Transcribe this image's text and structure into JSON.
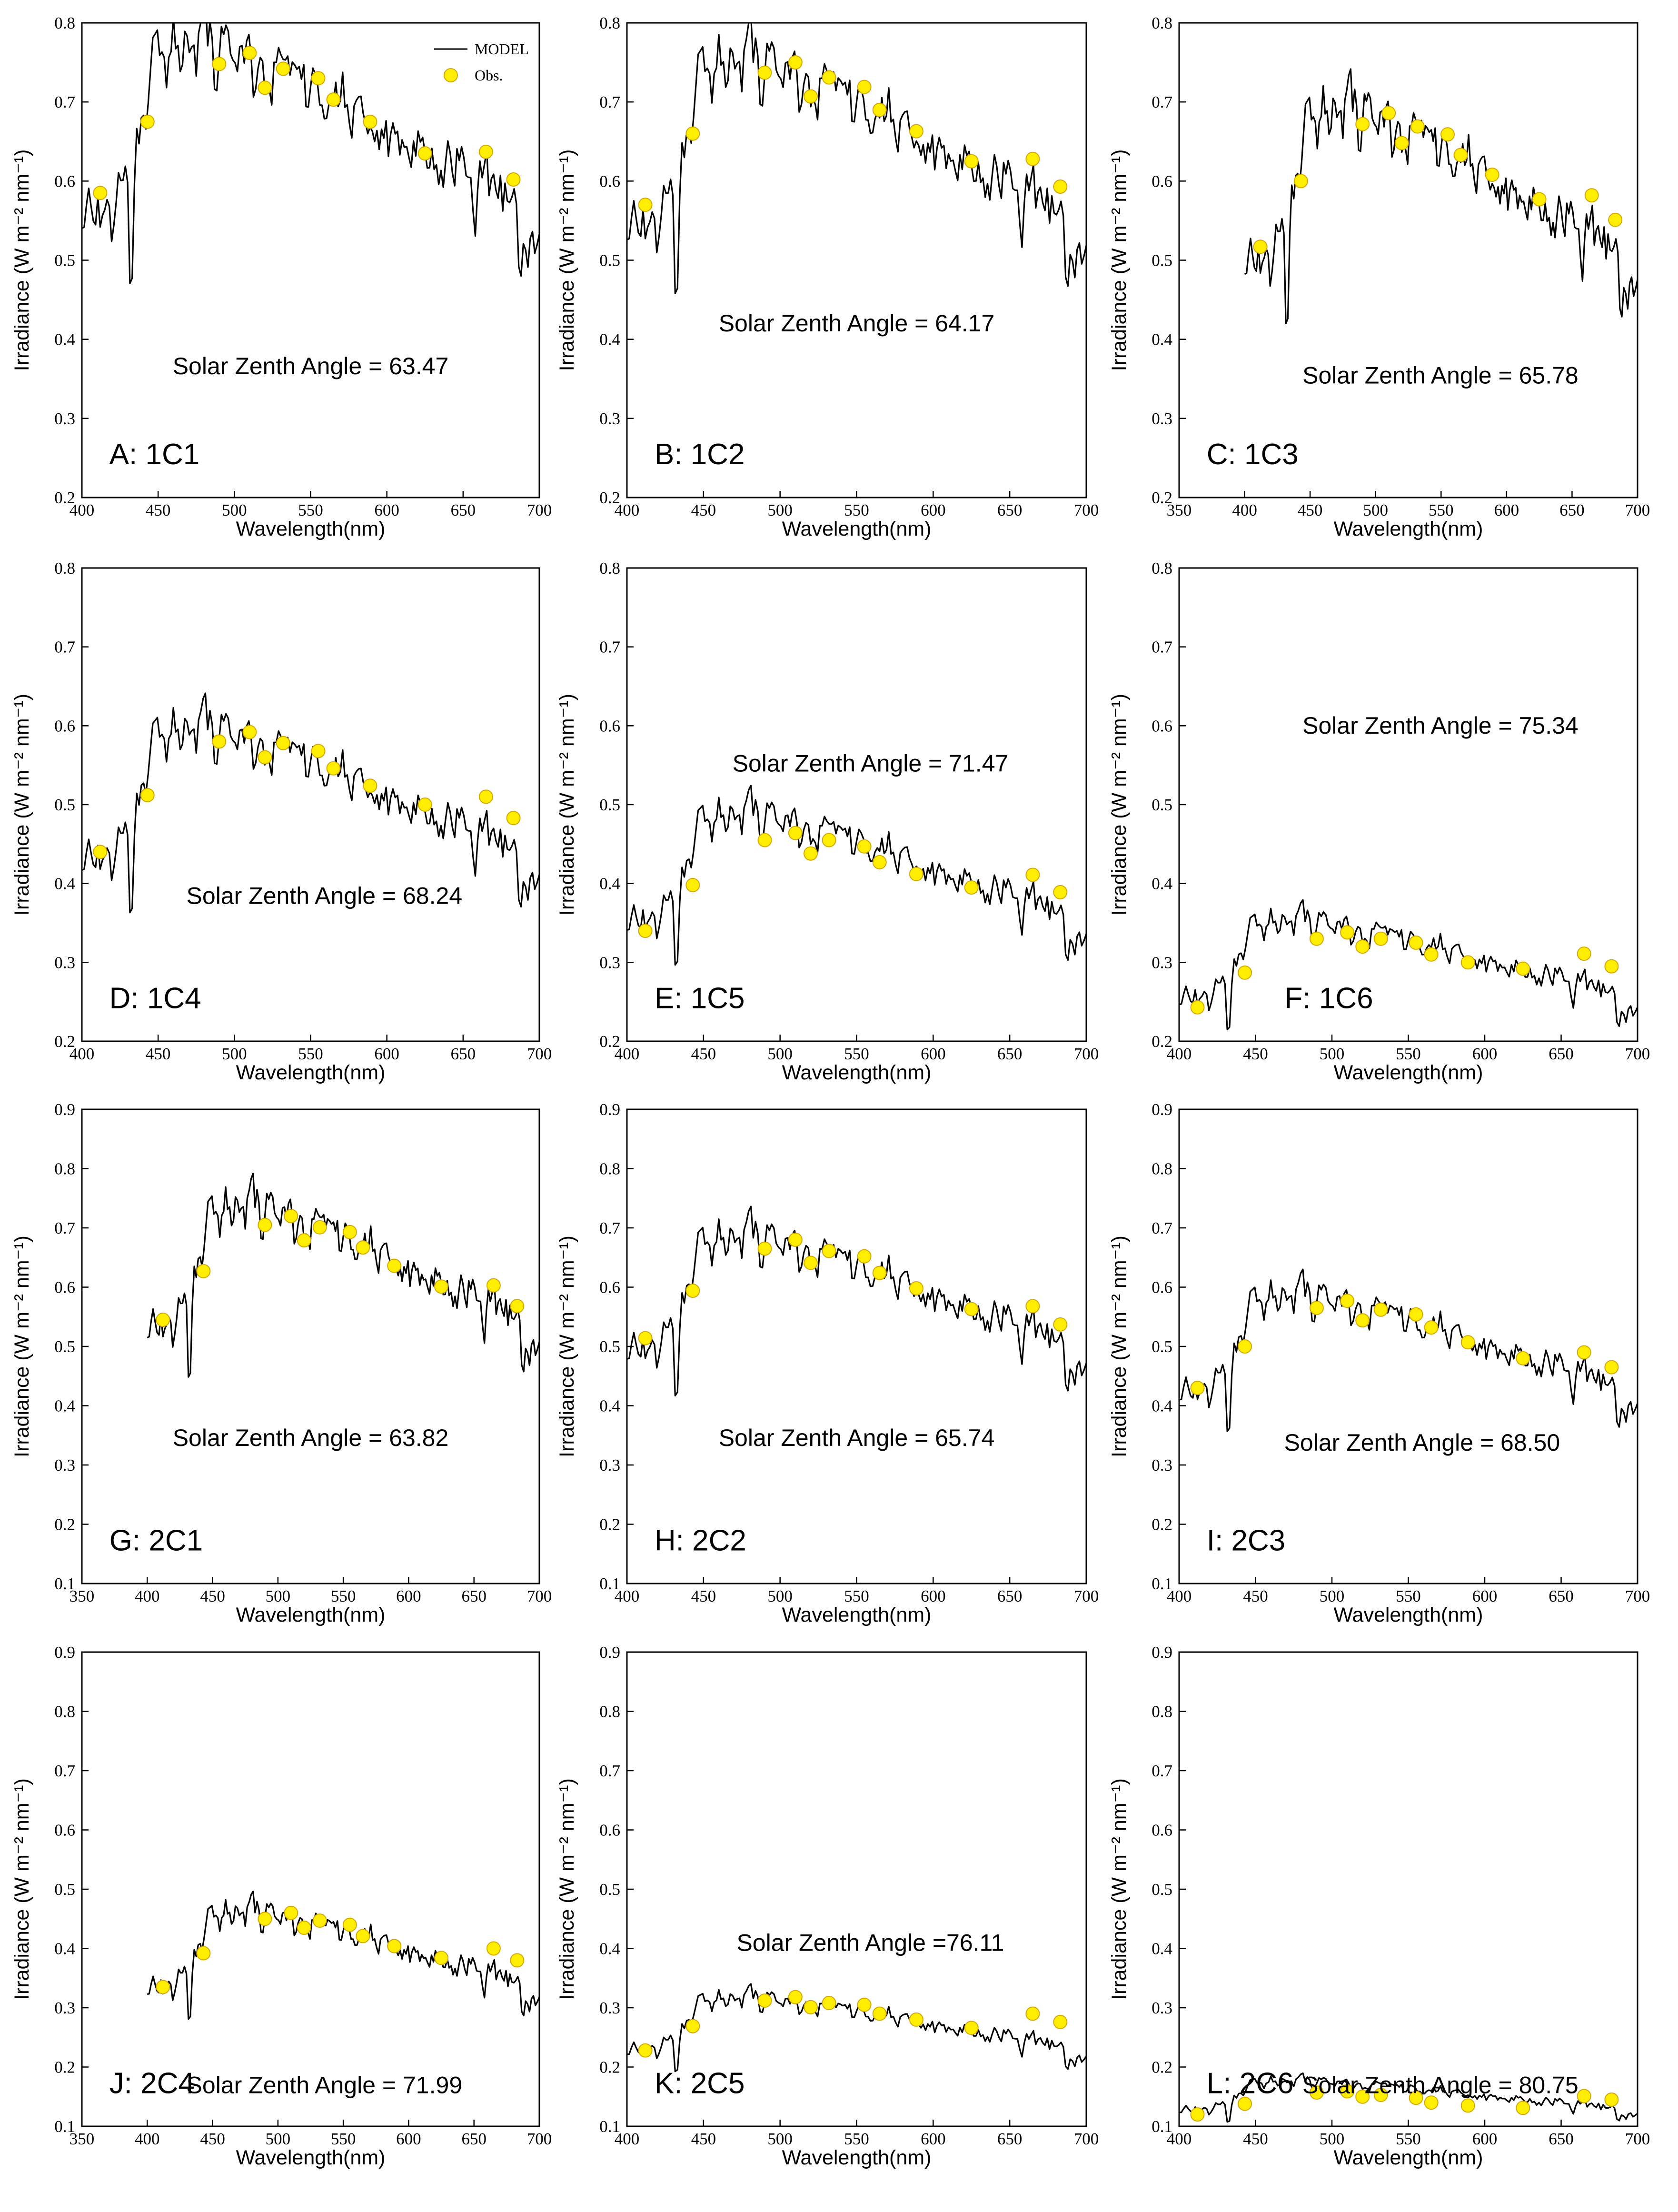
{
  "chart_data": {
    "type": "line",
    "xlabel": "Wavelength(nm)",
    "ylabel": "Irradiance (W m⁻² nm⁻¹)",
    "legend": {
      "placement": "top-right",
      "model_label": "MODEL",
      "obs_label": "Obs."
    },
    "colors": {
      "model_line": "#000000",
      "obs_fill": "#ffee00",
      "obs_stroke": "#d4a800",
      "frame": "#000000"
    },
    "shape_anchors": {
      "wavelength": [
        400,
        405,
        410,
        415,
        420,
        425,
        430,
        432,
        435,
        440,
        445,
        448,
        450,
        455,
        460,
        465,
        470,
        475,
        480,
        485,
        488,
        490,
        495,
        500,
        505,
        510,
        513,
        515,
        518,
        520,
        525,
        530,
        535,
        540,
        545,
        550,
        555,
        560,
        565,
        570,
        575,
        580,
        585,
        588,
        590,
        595,
        600,
        605,
        610,
        615,
        620,
        625,
        630,
        635,
        640,
        645,
        650,
        655,
        658,
        660,
        665,
        670,
        675,
        680,
        685,
        687,
        690,
        695,
        700
      ],
      "relative": [
        0.72,
        0.78,
        0.75,
        0.8,
        0.74,
        0.82,
        0.8,
        0.58,
        0.86,
        0.92,
        0.98,
        1.06,
        1.08,
        1.0,
        1.08,
        1.02,
        1.06,
        1.02,
        1.08,
        1.04,
        0.92,
        1.06,
        1.04,
        1.02,
        1.03,
        1.04,
        0.98,
        0.96,
        1.0,
        0.97,
        0.98,
        1.0,
        0.99,
        0.99,
        0.97,
        0.98,
        0.96,
        0.95,
        0.94,
        0.96,
        0.92,
        0.93,
        0.92,
        0.86,
        0.88,
        0.9,
        0.89,
        0.88,
        0.86,
        0.87,
        0.86,
        0.85,
        0.84,
        0.84,
        0.83,
        0.82,
        0.82,
        0.78,
        0.72,
        0.81,
        0.81,
        0.8,
        0.78,
        0.79,
        0.76,
        0.6,
        0.68,
        0.7,
        0.68
      ]
    },
    "panels": [
      {
        "panel": "A: 1C1",
        "annotation": "Solar Zenth Angle = 63.47",
        "show_legend": true,
        "xlim": [
          400,
          700
        ],
        "xticks": [
          400,
          450,
          500,
          550,
          600,
          650,
          700
        ],
        "ylim": [
          0.2,
          0.8
        ],
        "yticks": [
          0.2,
          0.3,
          0.4,
          0.5,
          0.6,
          0.7,
          0.8
        ],
        "model_start": 400,
        "model_scale": 0.745,
        "obs_wavelength": [
          412,
          443,
          490,
          510,
          520,
          532,
          555,
          565,
          589,
          625,
          665,
          683
        ],
        "obs_irradiance": [
          0.585,
          0.675,
          0.748,
          0.762,
          0.718,
          0.742,
          0.73,
          0.703,
          0.675,
          0.635,
          0.637,
          0.602
        ]
      },
      {
        "panel": "B: 1C2",
        "annotation": "Solar Zenth Angle = 64.17",
        "show_legend": false,
        "xlim": [
          400,
          700
        ],
        "xticks": [
          400,
          450,
          500,
          550,
          600,
          650,
          700
        ],
        "ylim": [
          0.2,
          0.8
        ],
        "yticks": [
          0.2,
          0.3,
          0.4,
          0.5,
          0.6,
          0.7,
          0.8
        ],
        "model_start": 400,
        "model_scale": 0.725,
        "obs_wavelength": [
          412,
          443,
          490,
          510,
          520,
          532,
          555,
          565,
          589,
          625,
          665,
          683
        ],
        "obs_irradiance": [
          0.57,
          0.66,
          0.737,
          0.75,
          0.707,
          0.731,
          0.719,
          0.69,
          0.663,
          0.625,
          0.628,
          0.593
        ]
      },
      {
        "panel": "C: 1C3",
        "annotation": "Solar Zenth Angle = 65.78",
        "show_legend": false,
        "xlim": [
          350,
          700
        ],
        "xticks": [
          350,
          400,
          450,
          500,
          550,
          600,
          650,
          700
        ],
        "ylim": [
          0.2,
          0.8
        ],
        "yticks": [
          0.2,
          0.3,
          0.4,
          0.5,
          0.6,
          0.7,
          0.8
        ],
        "model_start": 400,
        "model_scale": 0.665,
        "obs_wavelength": [
          412,
          443,
          490,
          510,
          520,
          532,
          555,
          565,
          589,
          625,
          665,
          683
        ],
        "obs_irradiance": [
          0.517,
          0.6,
          0.672,
          0.686,
          0.648,
          0.669,
          0.659,
          0.633,
          0.608,
          0.577,
          0.582,
          0.551
        ]
      },
      {
        "panel": "D: 1C4",
        "annotation": "Solar Zenth Angle = 68.24",
        "show_legend": false,
        "xlim": [
          400,
          700
        ],
        "xticks": [
          400,
          450,
          500,
          550,
          600,
          650,
          700
        ],
        "ylim": [
          0.2,
          0.8
        ],
        "yticks": [
          0.2,
          0.3,
          0.4,
          0.5,
          0.6,
          0.7,
          0.8
        ],
        "model_start": 400,
        "model_scale": 0.575,
        "obs_wavelength": [
          412,
          443,
          490,
          510,
          520,
          532,
          555,
          565,
          589,
          625,
          665,
          683
        ],
        "obs_irradiance": [
          0.44,
          0.512,
          0.58,
          0.592,
          0.56,
          0.578,
          0.568,
          0.546,
          0.524,
          0.5,
          0.51,
          0.483
        ]
      },
      {
        "panel": "E: 1C5",
        "annotation": "Solar Zenth Angle = 71.47",
        "show_legend": false,
        "xlim": [
          400,
          700
        ],
        "xticks": [
          400,
          450,
          500,
          550,
          600,
          650,
          700
        ],
        "ylim": [
          0.2,
          0.8
        ],
        "yticks": [
          0.2,
          0.3,
          0.4,
          0.5,
          0.6,
          0.7,
          0.8
        ],
        "model_start": 400,
        "model_scale": 0.47,
        "obs_wavelength": [
          412,
          443,
          490,
          510,
          520,
          532,
          555,
          565,
          589,
          625,
          665,
          683
        ],
        "obs_irradiance": [
          0.34,
          0.398,
          0.455,
          0.464,
          0.438,
          0.455,
          0.447,
          0.427,
          0.412,
          0.395,
          0.411,
          0.389
        ]
      },
      {
        "panel": "F: 1C6",
        "annotation": "Solar Zenth Angle = 75.34",
        "show_legend": false,
        "xlim": [
          400,
          700
        ],
        "xticks": [
          400,
          450,
          500,
          550,
          600,
          650,
          700
        ],
        "ylim": [
          0.2,
          0.8
        ],
        "yticks": [
          0.2,
          0.3,
          0.4,
          0.5,
          0.6,
          0.7,
          0.8
        ],
        "model_start": 400,
        "model_scale": 0.34,
        "obs_wavelength": [
          412,
          443,
          490,
          510,
          520,
          532,
          555,
          565,
          589,
          625,
          665,
          683
        ],
        "obs_irradiance": [
          0.243,
          0.287,
          0.33,
          0.338,
          0.32,
          0.33,
          0.325,
          0.31,
          0.3,
          0.292,
          0.311,
          0.295
        ]
      },
      {
        "panel": "G: 2C1",
        "annotation": "Solar Zenth Angle = 63.82",
        "show_legend": false,
        "xlim": [
          350,
          700
        ],
        "xticks": [
          350,
          400,
          450,
          500,
          550,
          600,
          650,
          700
        ],
        "ylim": [
          0.1,
          0.9
        ],
        "yticks": [
          0.1,
          0.2,
          0.3,
          0.4,
          0.5,
          0.6,
          0.7,
          0.8,
          0.9
        ],
        "model_start": 400,
        "model_scale": 0.71,
        "obs_wavelength": [
          412,
          443,
          490,
          510,
          520,
          532,
          555,
          565,
          589,
          625,
          665,
          683
        ],
        "obs_irradiance": [
          0.545,
          0.627,
          0.705,
          0.72,
          0.679,
          0.701,
          0.693,
          0.667,
          0.636,
          0.601,
          0.603,
          0.568
        ]
      },
      {
        "panel": "H: 2C2",
        "annotation": "Solar Zenth Angle = 65.74",
        "show_legend": false,
        "xlim": [
          400,
          700
        ],
        "xticks": [
          400,
          450,
          500,
          550,
          600,
          650,
          700
        ],
        "ylim": [
          0.1,
          0.9
        ],
        "yticks": [
          0.1,
          0.2,
          0.3,
          0.4,
          0.5,
          0.6,
          0.7,
          0.8,
          0.9
        ],
        "model_start": 400,
        "model_scale": 0.66,
        "obs_wavelength": [
          412,
          443,
          490,
          510,
          520,
          532,
          555,
          565,
          589,
          625,
          665,
          683
        ],
        "obs_irradiance": [
          0.514,
          0.594,
          0.665,
          0.68,
          0.641,
          0.661,
          0.652,
          0.624,
          0.598,
          0.563,
          0.568,
          0.537
        ]
      },
      {
        "panel": "I: 2C3",
        "annotation": "Solar Zenth Angle = 68.50",
        "show_legend": false,
        "xlim": [
          400,
          700
        ],
        "xticks": [
          400,
          450,
          500,
          550,
          600,
          650,
          700
        ],
        "ylim": [
          0.1,
          0.9
        ],
        "yticks": [
          0.1,
          0.2,
          0.3,
          0.4,
          0.5,
          0.6,
          0.7,
          0.8,
          0.9
        ],
        "model_start": 400,
        "model_scale": 0.565,
        "obs_wavelength": [
          412,
          443,
          490,
          510,
          520,
          532,
          555,
          565,
          589,
          625,
          665,
          683
        ],
        "obs_irradiance": [
          0.43,
          0.5,
          0.565,
          0.577,
          0.544,
          0.562,
          0.554,
          0.532,
          0.507,
          0.48,
          0.49,
          0.465
        ]
      },
      {
        "panel": "J: 2C4",
        "annotation": "Solar Zenth Angle = 71.99",
        "show_legend": false,
        "xlim": [
          350,
          700
        ],
        "xticks": [
          350,
          400,
          450,
          500,
          550,
          600,
          650,
          700
        ],
        "ylim": [
          0.1,
          0.9
        ],
        "yticks": [
          0.1,
          0.2,
          0.3,
          0.4,
          0.5,
          0.6,
          0.7,
          0.8,
          0.9
        ],
        "model_start": 400,
        "model_scale": 0.445,
        "obs_wavelength": [
          412,
          443,
          490,
          510,
          520,
          532,
          555,
          565,
          589,
          625,
          665,
          683
        ],
        "obs_irradiance": [
          0.335,
          0.392,
          0.45,
          0.46,
          0.435,
          0.447,
          0.44,
          0.421,
          0.404,
          0.384,
          0.4,
          0.38
        ]
      },
      {
        "panel": "K: 2C5",
        "annotation": "Solar Zenth Angle =76.11",
        "show_legend": false,
        "xlim": [
          400,
          700
        ],
        "xticks": [
          400,
          450,
          500,
          550,
          600,
          650,
          700
        ],
        "ylim": [
          0.1,
          0.9
        ],
        "yticks": [
          0.1,
          0.2,
          0.3,
          0.4,
          0.5,
          0.6,
          0.7,
          0.8,
          0.9
        ],
        "model_start": 400,
        "model_scale": 0.305,
        "obs_wavelength": [
          412,
          443,
          490,
          510,
          520,
          532,
          555,
          565,
          589,
          625,
          665,
          683
        ],
        "obs_irradiance": [
          0.228,
          0.269,
          0.312,
          0.318,
          0.301,
          0.308,
          0.305,
          0.29,
          0.28,
          0.266,
          0.29,
          0.276
        ]
      },
      {
        "panel": "L: 2C6",
        "annotation": "Solar Zenth Angle = 80.75",
        "show_legend": false,
        "xlim": [
          400,
          700
        ],
        "xticks": [
          400,
          450,
          500,
          550,
          600,
          650,
          700
        ],
        "ylim": [
          0.1,
          0.9
        ],
        "yticks": [
          0.1,
          0.2,
          0.3,
          0.4,
          0.5,
          0.6,
          0.7,
          0.8,
          0.9
        ],
        "model_start": 400,
        "model_scale": 0.17,
        "obs_wavelength": [
          412,
          443,
          490,
          510,
          520,
          532,
          555,
          565,
          589,
          625,
          665,
          683
        ],
        "obs_irradiance": [
          0.12,
          0.138,
          0.157,
          0.159,
          0.15,
          0.153,
          0.148,
          0.14,
          0.135,
          0.131,
          0.151,
          0.145
        ]
      }
    ]
  }
}
